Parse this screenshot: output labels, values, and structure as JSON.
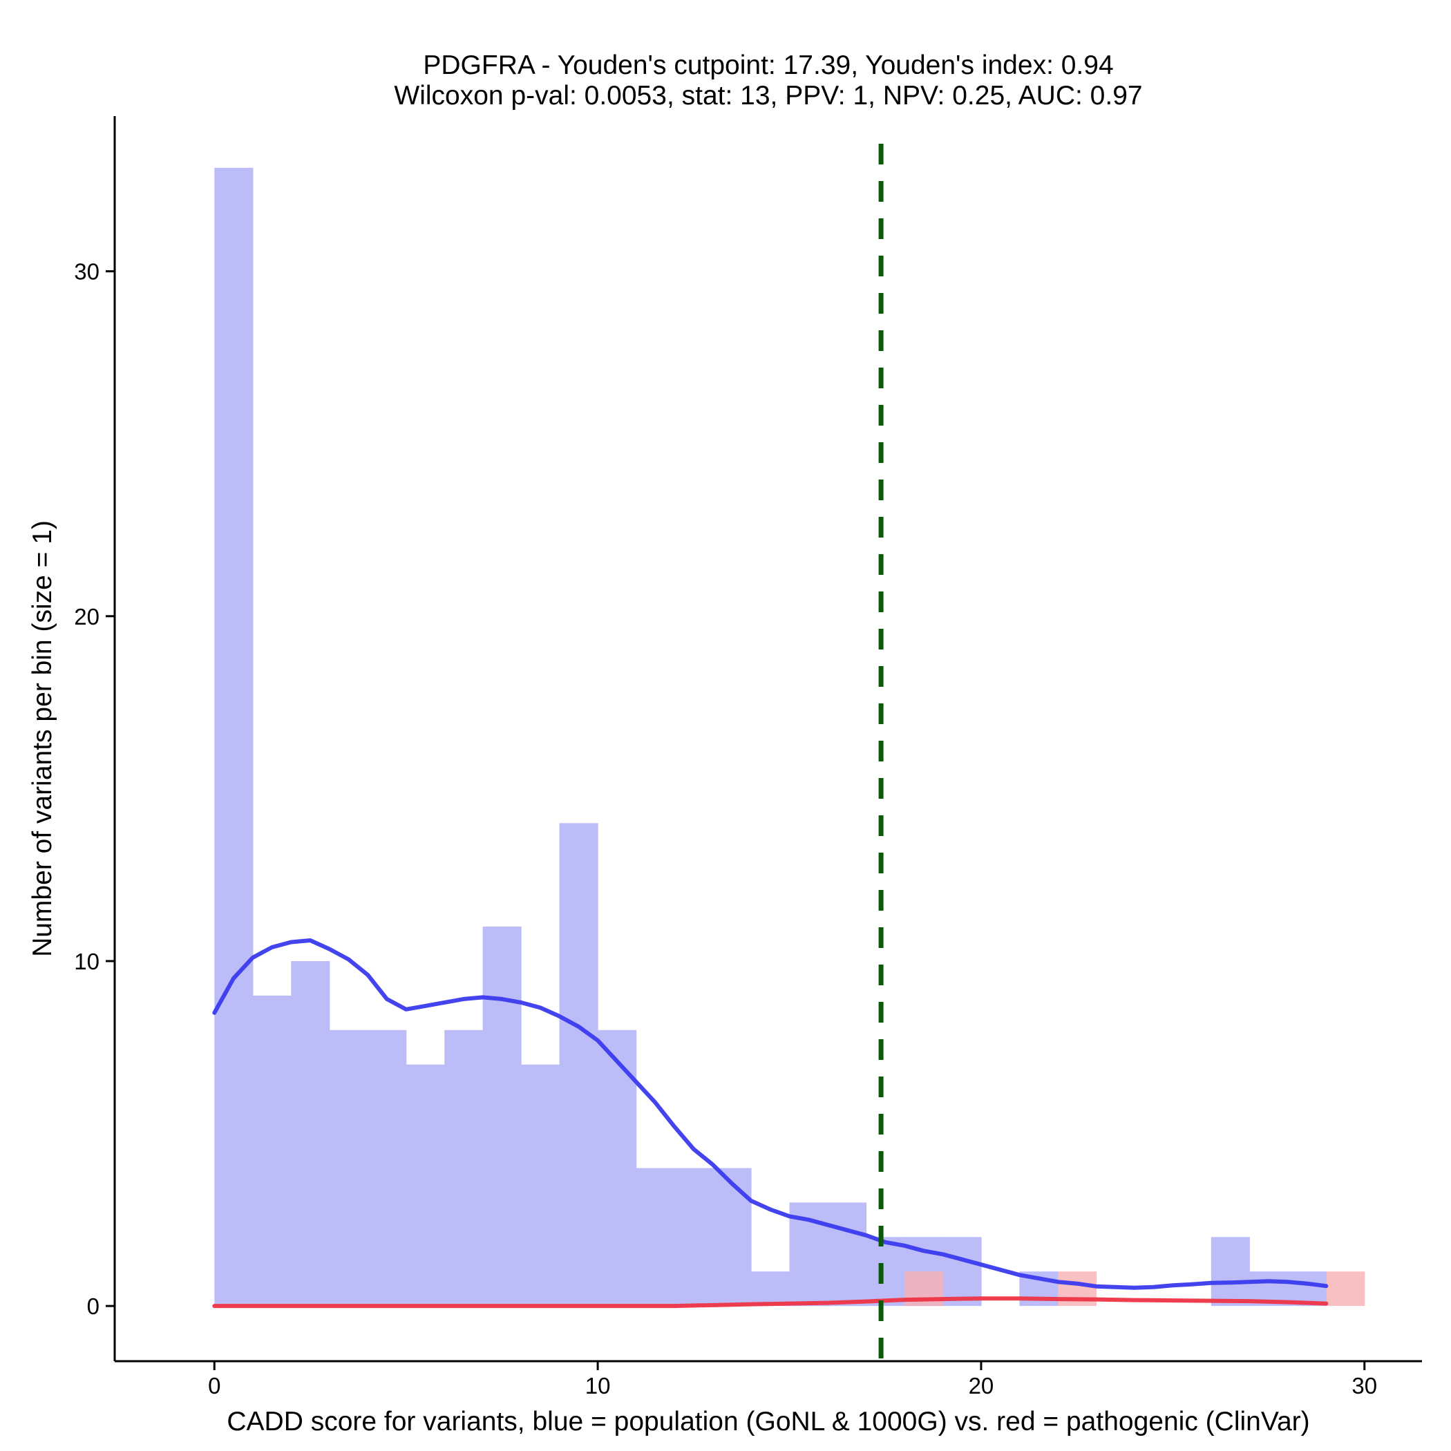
{
  "chart_data": {
    "type": "histogram",
    "title_line1": "PDGFRA - Youden's cutpoint: 17.39, Youden's index: 0.94",
    "title_line2": "Wilcoxon p-val: 0.0053, stat: 13, PPV: 1, NPV: 0.25, AUC: 0.97",
    "xlabel": "CADD score for variants, blue = population (GoNL & 1000G) vs. red = pathogenic (ClinVar)",
    "ylabel": "Number of variants per bin (size = 1)",
    "xlim": [
      -2.6,
      31.5
    ],
    "ylim": [
      -1.6,
      34.5
    ],
    "x_ticks": [
      0,
      10,
      20,
      30
    ],
    "x_tick_labels": [
      "0",
      "10",
      "20",
      "30"
    ],
    "y_ticks": [
      0,
      10,
      20,
      30
    ],
    "y_tick_labels": [
      "0",
      "10",
      "20",
      "30"
    ],
    "bin_size": 1,
    "cutpoint": 17.39,
    "series": [
      {
        "name": "population (GoNL & 1000G)",
        "color": "#bcbcf8",
        "line_color": "#3a3aee",
        "bins": [
          {
            "start": 0,
            "count": 33
          },
          {
            "start": 1,
            "count": 9
          },
          {
            "start": 2,
            "count": 10
          },
          {
            "start": 3,
            "count": 8
          },
          {
            "start": 4,
            "count": 8
          },
          {
            "start": 5,
            "count": 7
          },
          {
            "start": 6,
            "count": 8
          },
          {
            "start": 7,
            "count": 11
          },
          {
            "start": 8,
            "count": 7
          },
          {
            "start": 9,
            "count": 14
          },
          {
            "start": 10,
            "count": 8
          },
          {
            "start": 11,
            "count": 4
          },
          {
            "start": 12,
            "count": 4
          },
          {
            "start": 13,
            "count": 4
          },
          {
            "start": 14,
            "count": 1
          },
          {
            "start": 15,
            "count": 3
          },
          {
            "start": 16,
            "count": 3
          },
          {
            "start": 17,
            "count": 2
          },
          {
            "start": 18,
            "count": 2
          },
          {
            "start": 19,
            "count": 2
          },
          {
            "start": 21,
            "count": 1
          },
          {
            "start": 26,
            "count": 2
          },
          {
            "start": 27,
            "count": 1
          },
          {
            "start": 28,
            "count": 1
          }
        ],
        "density_curve": [
          [
            0,
            8.5
          ],
          [
            0.5,
            9.5
          ],
          [
            1,
            10.1
          ],
          [
            1.5,
            10.4
          ],
          [
            2,
            10.55
          ],
          [
            2.5,
            10.6
          ],
          [
            3,
            10.35
          ],
          [
            3.5,
            10.05
          ],
          [
            4,
            9.6
          ],
          [
            4.5,
            8.9
          ],
          [
            5,
            8.6
          ],
          [
            5.5,
            8.7
          ],
          [
            6,
            8.8
          ],
          [
            6.5,
            8.9
          ],
          [
            7,
            8.95
          ],
          [
            7.5,
            8.9
          ],
          [
            8,
            8.8
          ],
          [
            8.5,
            8.65
          ],
          [
            9,
            8.4
          ],
          [
            9.5,
            8.1
          ],
          [
            10,
            7.7
          ],
          [
            10.5,
            7.1
          ],
          [
            11,
            6.5
          ],
          [
            11.5,
            5.9
          ],
          [
            12,
            5.2
          ],
          [
            12.5,
            4.55
          ],
          [
            13,
            4.1
          ],
          [
            13.5,
            3.55
          ],
          [
            14,
            3.05
          ],
          [
            14.5,
            2.8
          ],
          [
            15,
            2.6
          ],
          [
            15.5,
            2.5
          ],
          [
            16,
            2.35
          ],
          [
            16.5,
            2.2
          ],
          [
            17,
            2.05
          ],
          [
            17.5,
            1.85
          ],
          [
            18,
            1.75
          ],
          [
            18.5,
            1.6
          ],
          [
            19,
            1.5
          ],
          [
            19.5,
            1.35
          ],
          [
            20,
            1.2
          ],
          [
            20.5,
            1.05
          ],
          [
            21,
            0.9
          ],
          [
            21.5,
            0.8
          ],
          [
            22,
            0.7
          ],
          [
            22.5,
            0.65
          ],
          [
            23,
            0.57
          ],
          [
            23.5,
            0.55
          ],
          [
            24,
            0.53
          ],
          [
            24.5,
            0.55
          ],
          [
            25,
            0.6
          ],
          [
            25.5,
            0.63
          ],
          [
            26,
            0.67
          ],
          [
            26.5,
            0.68
          ],
          [
            27,
            0.7
          ],
          [
            27.5,
            0.72
          ],
          [
            28,
            0.7
          ],
          [
            28.5,
            0.65
          ],
          [
            29,
            0.58
          ]
        ]
      },
      {
        "name": "pathogenic (ClinVar)",
        "color": "#f8b0b4",
        "line_color": "#ee3344",
        "bins": [
          {
            "start": 18,
            "count": 1
          },
          {
            "start": 22,
            "count": 1
          },
          {
            "start": 29,
            "count": 1
          }
        ],
        "density_curve": [
          [
            0,
            0
          ],
          [
            5,
            0
          ],
          [
            10,
            0
          ],
          [
            12,
            0
          ],
          [
            14,
            0.05
          ],
          [
            16,
            0.09
          ],
          [
            17,
            0.13
          ],
          [
            18,
            0.18
          ],
          [
            19,
            0.2
          ],
          [
            20,
            0.22
          ],
          [
            21,
            0.22
          ],
          [
            22,
            0.2
          ],
          [
            23,
            0.19
          ],
          [
            24,
            0.17
          ],
          [
            25,
            0.16
          ],
          [
            26,
            0.15
          ],
          [
            27,
            0.14
          ],
          [
            28,
            0.11
          ],
          [
            29,
            0.07
          ]
        ]
      }
    ]
  }
}
